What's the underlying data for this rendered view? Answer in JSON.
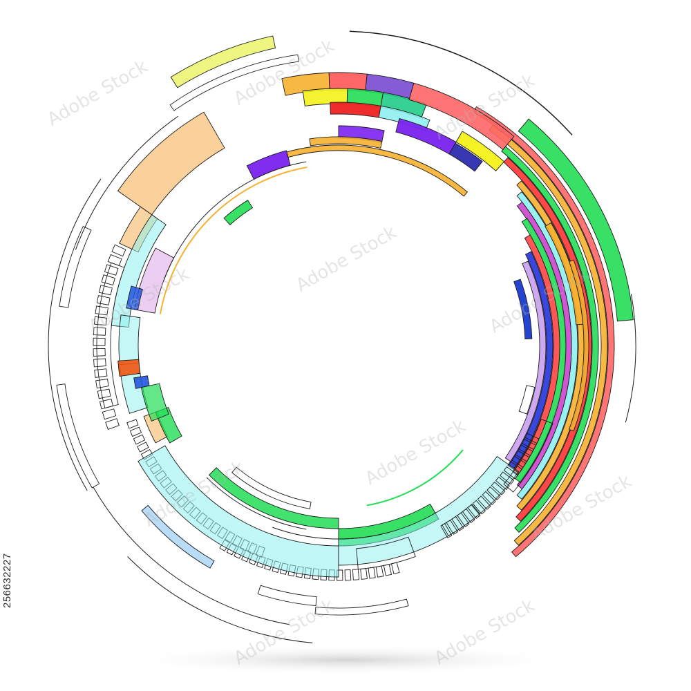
{
  "stock_id": "256632227",
  "watermark_text": "Adobe Stock",
  "colors": {
    "accent_green": "#22dd55",
    "accent_orange": "#f7b030",
    "accent_cyan": "#8ef0f0",
    "accent_purple": "#7a22ee",
    "accent_red": "#ee3333",
    "accent_yellow": "#f4f21a",
    "outline": "#1a1a1a"
  }
}
